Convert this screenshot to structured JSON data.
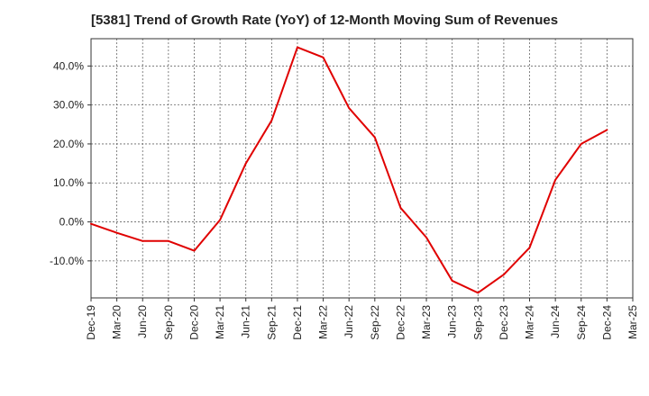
{
  "chart_data": {
    "type": "line",
    "title": "[5381]  Trend of Growth Rate (YoY) of 12-Month Moving Sum of Revenues",
    "xlabel": "",
    "ylabel": "",
    "x_tick_labels": [
      "Dec-19",
      "Mar-20",
      "Jun-20",
      "Sep-20",
      "Dec-20",
      "Mar-21",
      "Jun-21",
      "Sep-21",
      "Dec-21",
      "Mar-22",
      "Jun-22",
      "Sep-22",
      "Dec-22",
      "Mar-23",
      "Jun-23",
      "Sep-23",
      "Dec-23",
      "Mar-24",
      "Jun-24",
      "Sep-24",
      "Dec-24",
      "Mar-25"
    ],
    "y_ticks": [
      40,
      30,
      20,
      10,
      0,
      -10
    ],
    "y_tick_labels": [
      "40.0%",
      "30.0%",
      "20.0%",
      "10.0%",
      "0.0%",
      "-10.0%"
    ],
    "ylim": [
      -19.5,
      47
    ],
    "grid": true,
    "legend": "none",
    "series": [
      {
        "color": "#e00000",
        "x": [
          "Dec-19",
          "Mar-20",
          "Jun-20",
          "Sep-20",
          "Dec-20",
          "Mar-21",
          "Jun-21",
          "Sep-21",
          "Dec-21",
          "Mar-22",
          "Jun-22",
          "Sep-22",
          "Dec-22",
          "Mar-23",
          "Jun-23",
          "Sep-23",
          "Dec-23",
          "Mar-24",
          "Jun-24",
          "Sep-24",
          "Dec-24"
        ],
        "values": [
          -0.5,
          -2.8,
          -4.9,
          -4.9,
          -7.4,
          0.5,
          15.0,
          26.0,
          44.8,
          42.2,
          29.2,
          21.7,
          3.6,
          -4.0,
          -15.1,
          -18.2,
          -13.5,
          -6.6,
          10.8,
          20.0,
          23.6
        ]
      }
    ]
  }
}
